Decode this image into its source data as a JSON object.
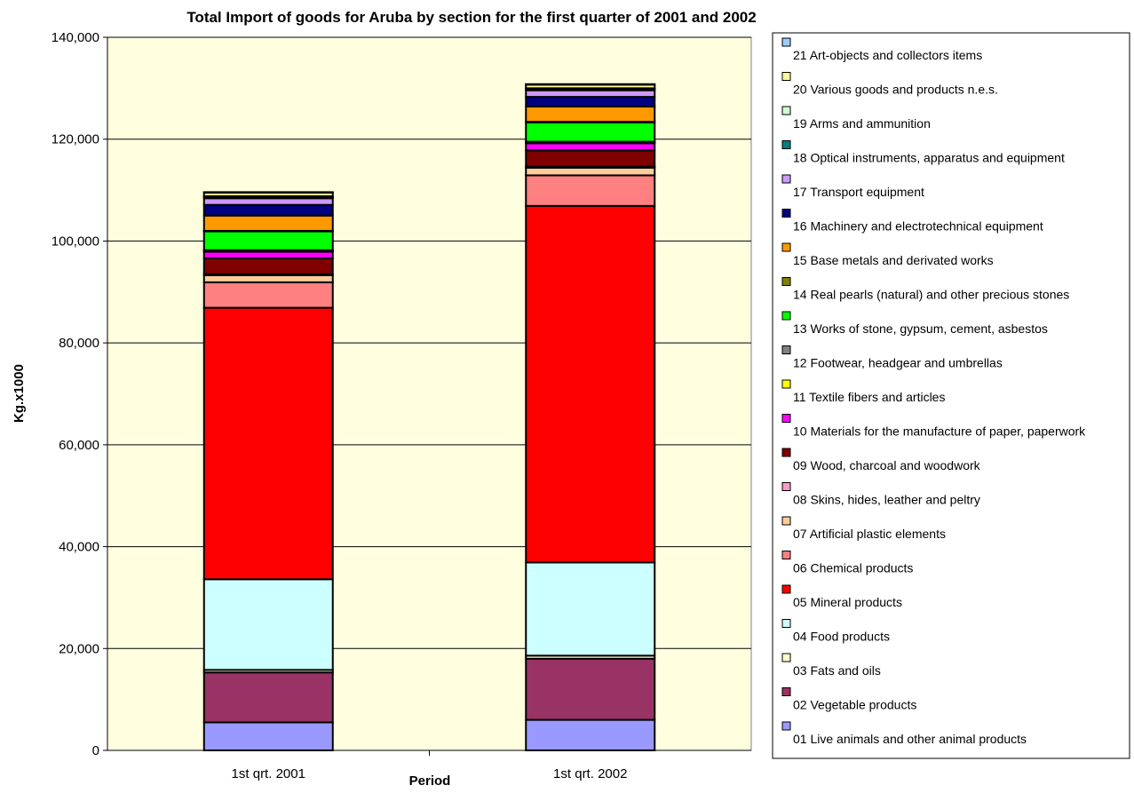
{
  "chart_data": {
    "type": "bar",
    "stacked": true,
    "title": "Total Import of goods for Aruba by section for the first quarter of 2001 and 2002",
    "xlabel": "Period",
    "ylabel": "Kg.x1000",
    "ylim": [
      0,
      140000
    ],
    "yticks": [
      0,
      20000,
      40000,
      60000,
      80000,
      100000,
      120000,
      140000
    ],
    "ytick_labels": [
      "0",
      "20,000",
      "40,000",
      "60,000",
      "80,000",
      "100,000",
      "120,000",
      "140,000"
    ],
    "grid": true,
    "legend_position": "right",
    "categories": [
      "1st qrt. 2001",
      "1st qrt. 2002"
    ],
    "series": [
      {
        "name": "01 Live animals and other animal products",
        "color": "#9999FF",
        "values": [
          5500,
          6000
        ]
      },
      {
        "name": "02 Vegetable products",
        "color": "#993366",
        "values": [
          9800,
          12000
        ]
      },
      {
        "name": "03 Fats and oils",
        "color": "#FFFFCC",
        "values": [
          500,
          600
        ]
      },
      {
        "name": "04 Food products",
        "color": "#CCFFFF",
        "values": [
          17800,
          18300
        ]
      },
      {
        "name": "05 Mineral products",
        "color": "#FF0000",
        "values": [
          53300,
          70000
        ]
      },
      {
        "name": "06 Chemical products",
        "color": "#FF8080",
        "values": [
          5000,
          6000
        ]
      },
      {
        "name": "07 Artificial plastic elements",
        "color": "#FFCC99",
        "values": [
          1400,
          1500
        ]
      },
      {
        "name": "08 Skins, hides, leather and peltry",
        "color": "#FF99CC",
        "values": [
          200,
          200
        ]
      },
      {
        "name": "09 Wood, charcoal and woodwork",
        "color": "#800000",
        "values": [
          3100,
          3200
        ]
      },
      {
        "name": "10 Materials for the manufacture of paper, paperwork",
        "color": "#FF00FF",
        "values": [
          1300,
          1400
        ]
      },
      {
        "name": "11 Textile fibers and articles",
        "color": "#FFFF00",
        "values": [
          200,
          200
        ]
      },
      {
        "name": "12 Footwear, headgear and umbrellas",
        "color": "#808080",
        "values": [
          100,
          100
        ]
      },
      {
        "name": "13 Works of stone, gypsum, cement, asbestos",
        "color": "#00FF00",
        "values": [
          3700,
          3800
        ]
      },
      {
        "name": "14 Real pearls (natural) and other precious stones",
        "color": "#808000",
        "values": [
          100,
          100
        ]
      },
      {
        "name": "15 Base metals and derivated works",
        "color": "#FF9900",
        "values": [
          3000,
          3000
        ]
      },
      {
        "name": "16 Machinery and electrotechnical equipment",
        "color": "#000080",
        "values": [
          2100,
          1900
        ]
      },
      {
        "name": "17 Transport equipment",
        "color": "#CC99FF",
        "values": [
          1300,
          1300
        ]
      },
      {
        "name": "18 Optical instruments, apparatus and equipment",
        "color": "#008080",
        "values": [
          300,
          300
        ]
      },
      {
        "name": "19 Arms and ammunition",
        "color": "#CCFFCC",
        "values": [
          100,
          100
        ]
      },
      {
        "name": "20 Various goods and products n.e.s.",
        "color": "#FFFF99",
        "values": [
          700,
          700
        ]
      },
      {
        "name": "21 Art-objects and collectors items",
        "color": "#99CCFF",
        "values": [
          100,
          100
        ]
      }
    ]
  }
}
